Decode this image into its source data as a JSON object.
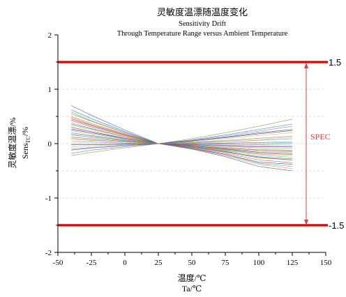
{
  "chart_data": {
    "type": "line",
    "title": "灵敏度温漂随温度变化",
    "subtitle_1": "Sensitivity Drift",
    "subtitle_2": "Through Temperature Range versus Ambient Temperature",
    "xlabel_1": "温度/℃",
    "xlabel_2": "Ta/℃",
    "ylabel_1": "灵敏度温漂/%",
    "ylabel_2_prefix": "Sens",
    "ylabel_2_sub": "TC",
    "ylabel_2_suffix": "/%",
    "xlim": [
      -50,
      150
    ],
    "ylim": [
      -2,
      2
    ],
    "xticks": [
      -50,
      -25,
      0,
      25,
      50,
      75,
      100,
      125,
      150
    ],
    "yticks": [
      -2,
      -1,
      0,
      1,
      2
    ],
    "x": [
      -40,
      -25,
      0,
      25,
      50,
      75,
      100,
      125
    ],
    "grid": "horizontal dashed at 0.5 steps",
    "limits": [
      {
        "label": "1.5",
        "value": 1.5,
        "color": "#e00000"
      },
      {
        "label": "-1.5",
        "value": -1.5,
        "color": "#e00000"
      }
    ],
    "spec_label": "SPEC",
    "spec_color": "#e23b3b",
    "series_colors": [
      "#1f3fbf",
      "#2a9d3a",
      "#d94040",
      "#8b5a2b",
      "#7b3fb5",
      "#2bb0b5",
      "#c8a21a",
      "#333333",
      "#5d7fd6",
      "#e07a1f",
      "#4aa84a",
      "#a33a8a",
      "#3a6b6b",
      "#b86b4b",
      "#6b6bd6",
      "#8f8f8f",
      "#c9b36a",
      "#4f2fa0",
      "#2f7fa0",
      "#a07f2f"
    ],
    "series": [
      {
        "values": [
          0.62,
          0.46,
          0.22,
          0,
          -0.1,
          -0.24,
          -0.42,
          -0.5
        ]
      },
      {
        "values": [
          0.55,
          0.41,
          0.2,
          0,
          -0.09,
          -0.2,
          -0.36,
          -0.42
        ]
      },
      {
        "values": [
          0.5,
          0.37,
          0.18,
          0,
          -0.08,
          -0.18,
          -0.3,
          -0.35
        ]
      },
      {
        "values": [
          0.46,
          0.34,
          0.16,
          0,
          -0.07,
          -0.16,
          -0.26,
          -0.3
        ]
      },
      {
        "values": [
          0.42,
          0.31,
          0.15,
          0,
          -0.06,
          -0.15,
          -0.24,
          -0.28
        ]
      },
      {
        "values": [
          0.38,
          0.28,
          0.13,
          0,
          -0.06,
          -0.13,
          -0.21,
          -0.25
        ]
      },
      {
        "values": [
          0.34,
          0.25,
          0.12,
          0,
          -0.05,
          -0.12,
          -0.19,
          -0.22
        ]
      },
      {
        "values": [
          0.3,
          0.22,
          0.1,
          0,
          -0.04,
          -0.1,
          -0.16,
          -0.18
        ]
      },
      {
        "values": [
          0.27,
          0.2,
          0.09,
          0,
          -0.04,
          -0.09,
          -0.14,
          -0.15
        ]
      },
      {
        "values": [
          0.24,
          0.18,
          0.08,
          0,
          -0.03,
          -0.07,
          -0.11,
          -0.12
        ]
      },
      {
        "values": [
          0.2,
          0.15,
          0.07,
          0,
          -0.02,
          -0.05,
          -0.08,
          -0.08
        ]
      },
      {
        "values": [
          0.16,
          0.12,
          0.05,
          0,
          -0.01,
          -0.03,
          -0.05,
          -0.04
        ]
      },
      {
        "values": [
          0.12,
          0.09,
          0.04,
          0,
          0.0,
          -0.01,
          -0.02,
          0.0
        ]
      },
      {
        "values": [
          0.08,
          0.06,
          0.03,
          0,
          0.01,
          0.01,
          0.02,
          0.04
        ]
      },
      {
        "values": [
          0.04,
          0.03,
          0.01,
          0,
          0.02,
          0.03,
          0.06,
          0.09
        ]
      },
      {
        "values": [
          0.0,
          0.0,
          0.0,
          0,
          0.03,
          0.06,
          0.1,
          0.14
        ]
      },
      {
        "values": [
          -0.06,
          -0.04,
          -0.02,
          0,
          0.04,
          0.09,
          0.15,
          0.2
        ]
      },
      {
        "values": [
          -0.12,
          -0.08,
          -0.04,
          0,
          0.05,
          0.12,
          0.2,
          0.26
        ]
      },
      {
        "values": [
          -0.18,
          -0.12,
          -0.06,
          0,
          0.07,
          0.16,
          0.26,
          0.36
        ]
      },
      {
        "values": [
          -0.22,
          -0.16,
          -0.08,
          0,
          0.09,
          0.2,
          0.32,
          0.45
        ]
      },
      {
        "values": [
          0.7,
          0.52,
          0.25,
          0,
          -0.08,
          -0.2,
          -0.34,
          -0.38
        ]
      },
      {
        "values": [
          0.58,
          0.42,
          0.2,
          0,
          -0.05,
          -0.14,
          -0.25,
          -0.3
        ]
      },
      {
        "values": [
          0.44,
          0.33,
          0.16,
          0,
          -0.05,
          -0.11,
          -0.18,
          -0.2
        ]
      },
      {
        "values": [
          0.36,
          0.27,
          0.13,
          0,
          -0.03,
          -0.08,
          -0.12,
          -0.13
        ]
      },
      {
        "values": [
          0.26,
          0.2,
          0.1,
          0,
          -0.02,
          -0.04,
          -0.06,
          -0.06
        ]
      },
      {
        "values": [
          0.18,
          0.14,
          0.06,
          0,
          0.0,
          0.0,
          0.01,
          0.02
        ]
      },
      {
        "values": [
          0.1,
          0.07,
          0.03,
          0,
          0.02,
          0.05,
          0.08,
          0.12
        ]
      },
      {
        "values": [
          -0.02,
          -0.02,
          -0.01,
          0,
          0.05,
          0.11,
          0.18,
          0.24
        ]
      },
      {
        "values": [
          -0.1,
          -0.07,
          -0.03,
          0,
          0.06,
          0.14,
          0.23,
          0.32
        ]
      },
      {
        "values": [
          0.48,
          0.35,
          0.17,
          0,
          -0.09,
          -0.22,
          -0.38,
          -0.46
        ]
      }
    ]
  }
}
